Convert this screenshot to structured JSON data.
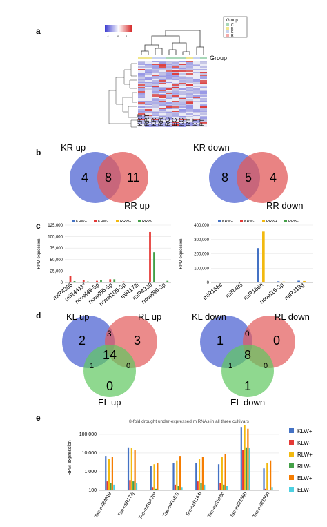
{
  "panels": {
    "a": {
      "label": "a",
      "legend_title": "Group",
      "group_legend": [
        "C",
        "E",
        "K",
        "R"
      ],
      "group_bar_label": "Group",
      "scale_ticks": [
        "-4",
        "0",
        "2"
      ],
      "columns": [
        "KRT",
        "RRT",
        "KR",
        "RR",
        "RC",
        "EC",
        "KC",
        "RT",
        "KT",
        "ET"
      ],
      "colors": {
        "low": "#3b3bd0",
        "mid": "#ffffff",
        "high": "#d42020"
      }
    },
    "b": {
      "label": "b",
      "left": {
        "a_label": "KR up",
        "b_label": "RR up",
        "a_only": "4",
        "both": "8",
        "b_only": "11"
      },
      "right": {
        "a_label": "KR down",
        "b_label": "RR down",
        "a_only": "8",
        "both": "5",
        "b_only": "4"
      },
      "colors": {
        "blue": "#5b6fd6",
        "red": "#e25a5a"
      }
    },
    "c": {
      "label": "c",
      "left_chart": {
        "ylabel": "RPM expression",
        "legend": [
          "KRW+",
          "KRW-",
          "RRW+",
          "RRW-"
        ]
      },
      "right_chart": {
        "ylabel": "RPM expression",
        "legend": [
          "KRW+",
          "KRW-",
          "RRW+",
          "RRW-"
        ]
      }
    },
    "d": {
      "label": "d",
      "left": {
        "top_left": "KL up",
        "top_right": "RL up",
        "bottom": "EL up",
        "a_only": "2",
        "b_only": "3",
        "c_only": "0",
        "ab": "3",
        "ac": "1",
        "bc": "0",
        "abc": "14"
      },
      "right": {
        "top_left": "KL down",
        "top_right": "RL down",
        "bottom": "EL down",
        "a_only": "1",
        "b_only": "0",
        "c_only": "1",
        "ab": "0",
        "ac": "1",
        "bc": "0",
        "abc": "8"
      },
      "colors": {
        "blue": "#5b6fd6",
        "red": "#e25a5a",
        "green": "#5fc85f"
      }
    },
    "e": {
      "label": "e",
      "title": "8-fold drought under-expressed miRNAs in all three cultivars",
      "ylabel": "RPM expression"
    }
  },
  "chart_data": [
    {
      "type": "bar",
      "categories": [
        "miR4306",
        "miR4411*",
        "novel49-5p",
        "novel55-5p",
        "novel105-3p",
        "miR172j",
        "miR4330",
        "novel88-3p"
      ],
      "series": [
        {
          "name": "KRW+",
          "color": "#4472c4",
          "values": [
            0,
            0,
            0,
            0,
            0,
            0,
            0,
            0
          ]
        },
        {
          "name": "KRW-",
          "color": "#e53935",
          "values": [
            14000,
            6000,
            3500,
            7000,
            2000,
            1500,
            110000,
            1500
          ]
        },
        {
          "name": "RRW+",
          "color": "#f2b90f",
          "values": [
            0,
            0,
            0,
            0,
            0,
            0,
            0,
            0
          ]
        },
        {
          "name": "RRW-",
          "color": "#43a047",
          "values": [
            3000,
            2000,
            4500,
            7000,
            1500,
            1000,
            66000,
            3500
          ]
        }
      ],
      "ylabel": "RPM expression",
      "yticks": [
        "0",
        "25,000",
        "50,000",
        "75,000",
        "100,000",
        "125,000"
      ],
      "ylim": [
        0,
        125000
      ]
    },
    {
      "type": "bar",
      "categories": [
        "miR166c",
        "miR485",
        "miR166h",
        "novel16-3p",
        "miR319g"
      ],
      "series": [
        {
          "name": "KRW+",
          "color": "#4472c4",
          "values": [
            1500,
            1000,
            240000,
            8000,
            12000
          ]
        },
        {
          "name": "KRW-",
          "color": "#e53935",
          "values": [
            0,
            0,
            0,
            0,
            0
          ]
        },
        {
          "name": "RRW+",
          "color": "#f2b90f",
          "values": [
            1000,
            800,
            355000,
            6000,
            10000
          ]
        },
        {
          "name": "RRW-",
          "color": "#43a047",
          "values": [
            0,
            0,
            0,
            0,
            0
          ]
        }
      ],
      "ylabel": "RPM expression",
      "yticks": [
        "0",
        "100,000",
        "200,000",
        "300,000",
        "400,000"
      ],
      "ylim": [
        0,
        400000
      ]
    },
    {
      "type": "bar",
      "title": "8-fold drought under-expressed miRNAs in all three cultivars",
      "categories": [
        "Tae-miR4319",
        "Tae-miR172j",
        "Tae-miR9670*",
        "Tae-miR167r",
        "Tae-miR164i",
        "Tae-miR528c",
        "Tae-miR168b",
        "Tae-miR156n"
      ],
      "series": [
        {
          "name": "KLW+",
          "color": "#4472c4",
          "values": [
            7000,
            20000,
            2000,
            3000,
            3000,
            2500,
            250000,
            1500
          ]
        },
        {
          "name": "KLW-",
          "color": "#e53935",
          "values": [
            300,
            350,
            150,
            200,
            300,
            250,
            15000,
            120
          ]
        },
        {
          "name": "RLW+",
          "color": "#f2b90f",
          "values": [
            5000,
            18000,
            2500,
            4000,
            5000,
            6000,
            300000,
            3000
          ]
        },
        {
          "name": "RLW-",
          "color": "#43a047",
          "values": [
            250,
            300,
            120,
            180,
            250,
            200,
            20000,
            100
          ]
        },
        {
          "name": "ELW+",
          "color": "#f57c00",
          "values": [
            6000,
            15000,
            3000,
            7000,
            6000,
            9000,
            200000,
            4000
          ]
        },
        {
          "name": "ELW-",
          "color": "#4dd0e1",
          "values": [
            200,
            250,
            100,
            150,
            200,
            180,
            18000,
            150
          ]
        }
      ],
      "ylabel": "RPM expression",
      "yscale": "log",
      "yticks": [
        "100",
        "1,000",
        "10,000",
        "100,000"
      ],
      "ylim": [
        100,
        300000
      ]
    }
  ]
}
